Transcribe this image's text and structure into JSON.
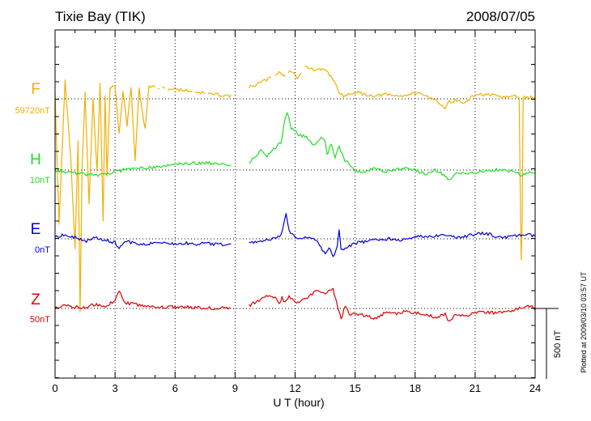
{
  "page": {
    "station_title": "Tixie Bay (TIK)",
    "date": "2008/07/05",
    "plotted_note": "Plotted at 2009/03/10 03:57 UT",
    "scale_label": "500 nT"
  },
  "colors": {
    "F": "#f0b000",
    "H": "#22dd22",
    "E": "#0000dd",
    "Z": "#dd0000",
    "axis": "#000000"
  },
  "chart_data": {
    "type": "line",
    "title": "Tixie Bay (TIK)",
    "date": "2008/07/05",
    "xlabel": "U T (hour)",
    "xlim": [
      0,
      24
    ],
    "xticks": [
      "0",
      "3",
      "6",
      "9",
      "12",
      "15",
      "18",
      "21",
      "24"
    ],
    "grid": "dotted vertical lines every 3 h; dotted horizontal baseline for each component",
    "scale_bar_nT": 500,
    "series": [
      {
        "name": "F",
        "baseline_label": "59720nT",
        "color": "#f0b000",
        "noise": 2,
        "gap": [
          8.8,
          9.7
        ],
        "x": [
          0,
          0.2,
          0.5,
          0.8,
          1.0,
          1.15,
          1.25,
          1.35,
          1.5,
          1.7,
          1.9,
          2.1,
          2.25,
          2.4,
          2.5,
          2.6,
          2.75,
          3.0,
          3.2,
          3.4,
          3.6,
          3.8,
          4.0,
          4.2,
          4.5,
          4.7,
          5.0,
          5.5,
          6.0,
          6.5,
          7.0,
          7.5,
          8.0,
          8.5,
          8.8,
          9.7,
          10.2,
          10.8,
          11.2,
          11.5,
          11.8,
          12.1,
          12.5,
          13.0,
          13.5,
          14.0,
          14.2,
          14.5,
          15.0,
          15.5,
          16.0,
          16.5,
          17.0,
          17.5,
          18.0,
          18.5,
          19.0,
          19.5,
          19.7,
          20.0,
          20.5,
          21.0,
          21.5,
          22.0,
          22.5,
          23.0,
          23.2,
          23.3,
          23.35,
          23.4,
          23.6,
          24.0
        ],
        "y": [
          45,
          -900,
          130,
          -450,
          -1070,
          -300,
          -1510,
          -500,
          40,
          -750,
          0,
          -520,
          100,
          -870,
          30,
          -560,
          80,
          100,
          -250,
          60,
          -190,
          80,
          -440,
          70,
          -220,
          90,
          80,
          70,
          70,
          60,
          50,
          40,
          30,
          25,
          20,
          80,
          110,
          150,
          190,
          160,
          200,
          150,
          230,
          200,
          210,
          120,
          30,
          20,
          50,
          30,
          20,
          30,
          20,
          25,
          40,
          20,
          0,
          -70,
          -20,
          -10,
          -30,
          30,
          30,
          20,
          10,
          20,
          10,
          -1150,
          -900,
          10,
          10,
          10
        ],
        "segment_breaks": [
          5.05,
          5.3,
          5.6,
          6.9,
          7.6,
          10.9,
          11.55,
          12.4
        ]
      },
      {
        "name": "H",
        "baseline_label": "10nT",
        "color": "#22dd22",
        "noise": 2,
        "gap": [
          8.8,
          9.7
        ],
        "x": [
          0,
          0.5,
          1.0,
          1.5,
          2.0,
          2.5,
          3.0,
          3.5,
          4.0,
          5.0,
          6.0,
          7.0,
          8.0,
          8.8,
          9.7,
          10.0,
          10.3,
          10.6,
          11.0,
          11.3,
          11.5,
          11.6,
          11.8,
          12.2,
          12.5,
          12.8,
          13.0,
          13.3,
          13.5,
          13.6,
          13.8,
          14.0,
          14.2,
          14.5,
          15.0,
          15.5,
          16.0,
          16.5,
          17.0,
          17.5,
          18.0,
          18.5,
          19.0,
          19.5,
          19.7,
          20.0,
          20.5,
          21.0,
          21.5,
          22.0,
          22.5,
          23.0,
          23.3,
          23.5,
          24.0
        ],
        "y": [
          0,
          -10,
          -20,
          -30,
          -40,
          -30,
          -10,
          0,
          10,
          20,
          40,
          50,
          50,
          40,
          50,
          100,
          140,
          100,
          160,
          200,
          370,
          410,
          300,
          250,
          240,
          200,
          170,
          240,
          200,
          110,
          180,
          90,
          160,
          70,
          0,
          -20,
          20,
          -10,
          0,
          10,
          0,
          -30,
          0,
          -40,
          -70,
          -30,
          -20,
          -20,
          -10,
          0,
          0,
          -10,
          -40,
          -20,
          -30
        ]
      },
      {
        "name": "E",
        "baseline_label": "0nT",
        "color": "#0000dd",
        "noise": 2,
        "gap": [
          8.8,
          9.7
        ],
        "x": [
          0,
          0.5,
          1.0,
          1.5,
          2.0,
          2.5,
          3.0,
          3.2,
          3.5,
          4.0,
          4.5,
          5.0,
          5.5,
          6.0,
          6.5,
          7.0,
          7.5,
          8.0,
          8.5,
          8.8,
          9.7,
          10.0,
          10.5,
          11.0,
          11.3,
          11.45,
          11.55,
          11.7,
          12.0,
          12.5,
          13.0,
          13.3,
          13.5,
          13.7,
          13.9,
          14.1,
          14.2,
          14.3,
          14.5,
          15.0,
          15.5,
          16.0,
          16.5,
          17.0,
          17.5,
          18.0,
          18.5,
          19.0,
          19.5,
          20.0,
          20.5,
          21.0,
          21.5,
          22.0,
          22.5,
          23.0,
          23.5,
          24.0
        ],
        "y": [
          10,
          30,
          10,
          -20,
          10,
          -10,
          -30,
          -70,
          -20,
          -30,
          -40,
          -30,
          -20,
          -40,
          -30,
          -40,
          -30,
          -40,
          -40,
          -40,
          -30,
          -20,
          -10,
          0,
          30,
          110,
          170,
          60,
          10,
          10,
          0,
          -70,
          -110,
          -60,
          -130,
          -50,
          60,
          -80,
          -70,
          -30,
          -20,
          -10,
          0,
          0,
          -10,
          10,
          20,
          20,
          20,
          10,
          20,
          30,
          40,
          20,
          10,
          20,
          30,
          20
        ]
      },
      {
        "name": "Z",
        "baseline_label": "50nT",
        "color": "#dd0000",
        "noise": 2,
        "gap": [
          8.8,
          9.7
        ],
        "x": [
          0,
          0.5,
          1.0,
          1.5,
          2.0,
          2.5,
          3.0,
          3.2,
          3.5,
          4.0,
          5.0,
          6.0,
          7.0,
          8.0,
          8.8,
          9.7,
          10.2,
          10.7,
          11.0,
          11.2,
          11.35,
          11.5,
          11.7,
          12.0,
          12.5,
          13.0,
          13.5,
          13.9,
          14.1,
          14.3,
          14.5,
          14.7,
          15.0,
          15.5,
          16.0,
          16.5,
          17.0,
          17.5,
          18.0,
          18.5,
          19.0,
          19.5,
          19.7,
          20.0,
          20.5,
          21.0,
          21.5,
          22.0,
          22.5,
          23.0,
          23.5,
          24.0
        ],
        "y": [
          0,
          20,
          10,
          10,
          30,
          10,
          60,
          130,
          40,
          30,
          10,
          10,
          10,
          0,
          10,
          20,
          60,
          100,
          80,
          30,
          80,
          40,
          90,
          40,
          70,
          120,
          110,
          140,
          30,
          -80,
          20,
          -40,
          -40,
          -50,
          -70,
          -30,
          -40,
          -20,
          -30,
          -40,
          -60,
          -40,
          -100,
          -40,
          -60,
          -30,
          -30,
          -30,
          -20,
          -10,
          20,
          0
        ]
      }
    ]
  }
}
